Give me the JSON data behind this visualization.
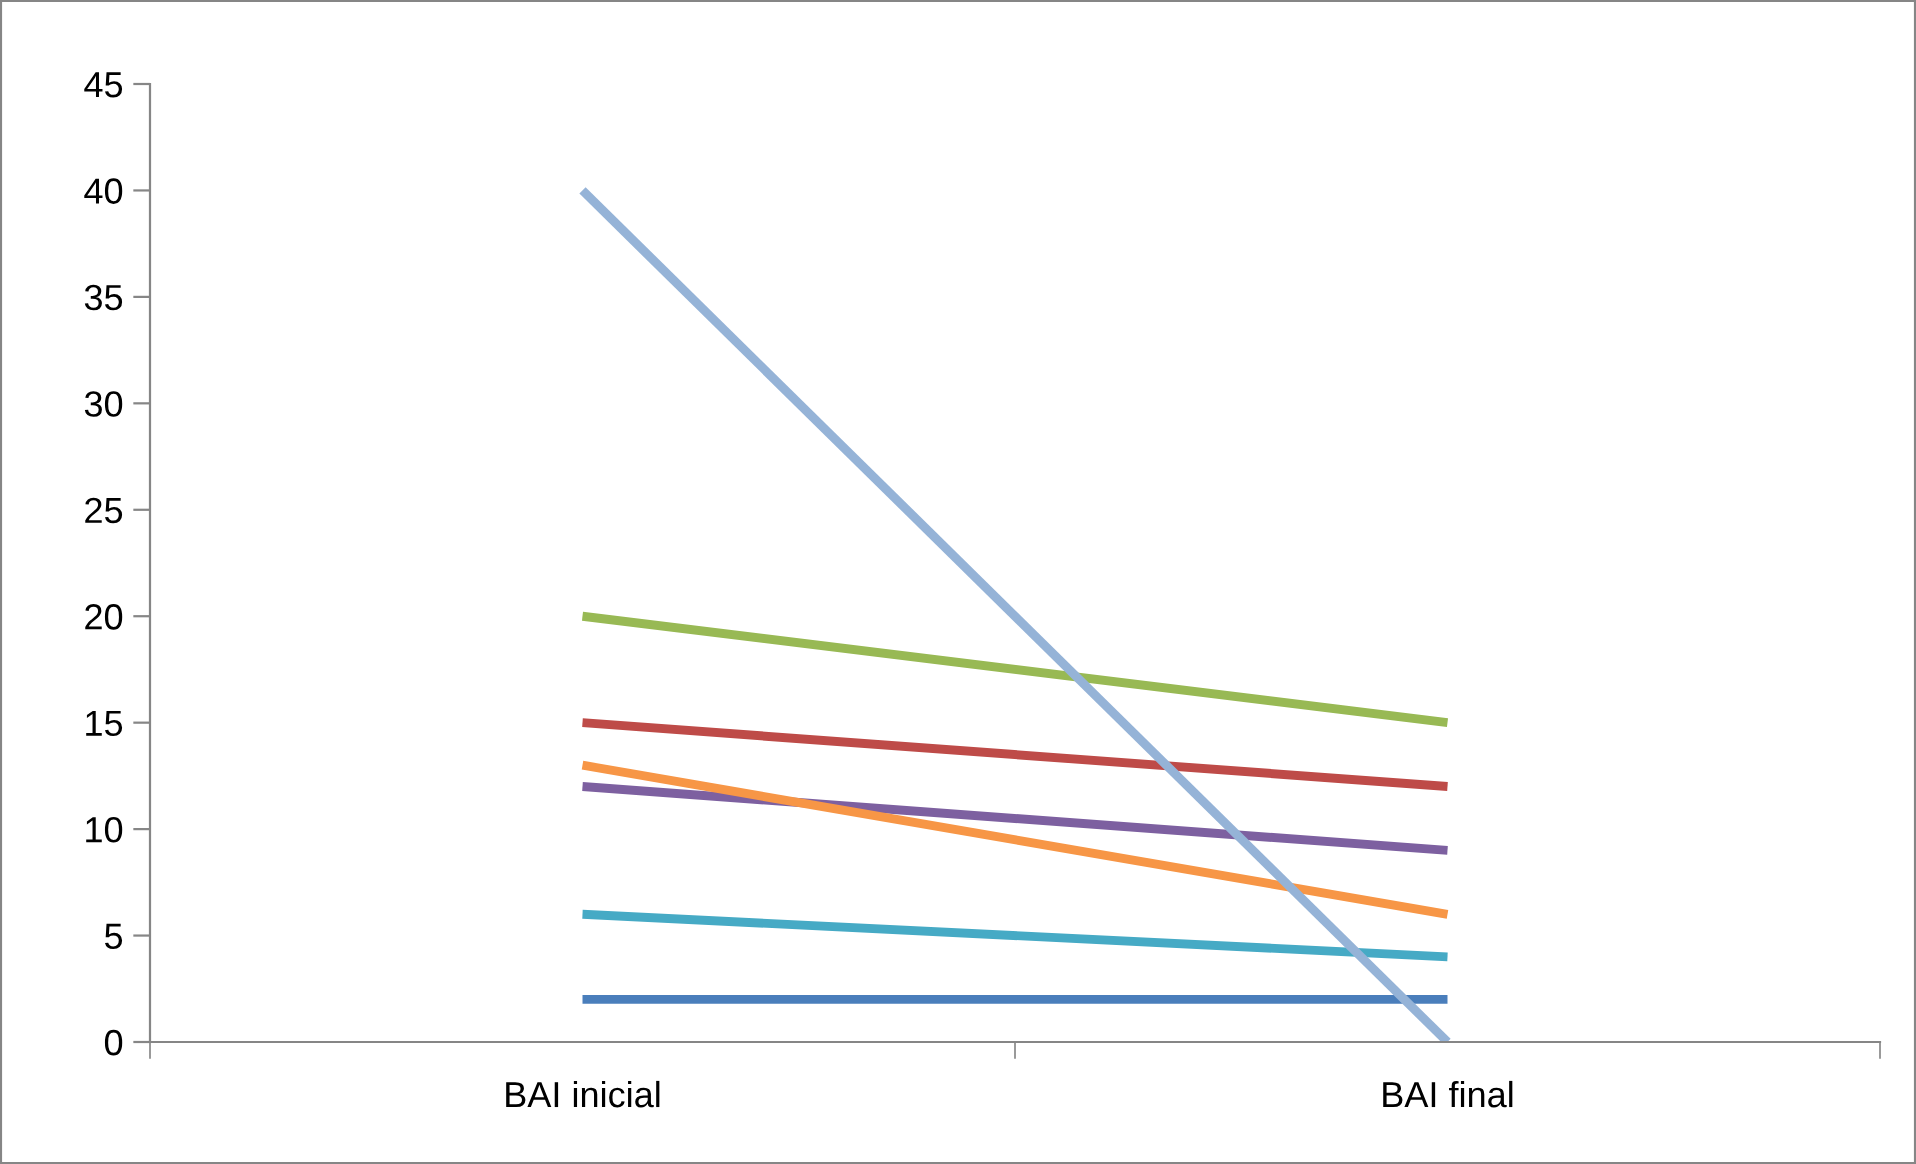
{
  "chart_data": {
    "type": "line",
    "categories": [
      "BAI inicial",
      "BAI final"
    ],
    "ylim": [
      0,
      45
    ],
    "yticks": [
      0,
      5,
      10,
      15,
      20,
      25,
      30,
      35,
      40,
      45
    ],
    "grid": false,
    "legend": false,
    "marker": "none",
    "line_style": "solid",
    "series": [
      {
        "color": "#4a7ebb",
        "values": [
          2,
          2
        ]
      },
      {
        "color": "#be4b48",
        "values": [
          15,
          12
        ]
      },
      {
        "color": "#98b954",
        "values": [
          20,
          15
        ]
      },
      {
        "color": "#7d60a0",
        "values": [
          12,
          9
        ]
      },
      {
        "color": "#46aac5",
        "values": [
          6,
          4
        ]
      },
      {
        "color": "#f79646",
        "values": [
          13,
          6
        ]
      },
      {
        "color": "#95b3d7",
        "values": [
          40,
          0
        ]
      }
    ]
  }
}
